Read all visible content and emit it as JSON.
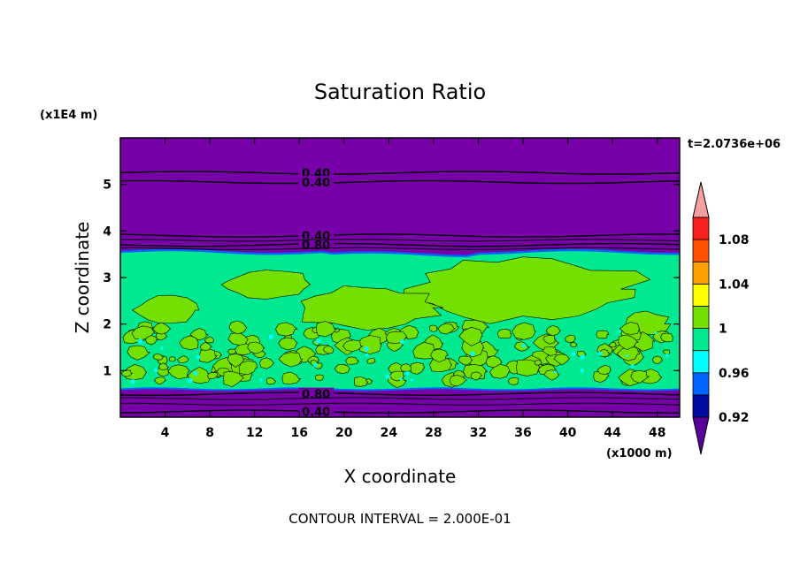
{
  "chart_data": {
    "type": "heatmap",
    "title": "Saturation Ratio",
    "xlabel": "X coordinate",
    "ylabel": "Z coordinate",
    "x_scale_label": "(x1000 m)",
    "y_scale_label": "(x1E4 m)",
    "time_label": "t=2.0736e+06",
    "footer": "CONTOUR INTERVAL = 2.000E-01",
    "xlim": [
      0,
      50
    ],
    "ylim": [
      0,
      6
    ],
    "x_ticks": [
      4,
      8,
      12,
      16,
      20,
      24,
      28,
      32,
      36,
      40,
      44,
      48
    ],
    "y_ticks": [
      1,
      2,
      3,
      4,
      5
    ],
    "colorbar": {
      "levels": [
        0.92,
        0.94,
        0.96,
        0.98,
        1.0,
        1.02,
        1.04,
        1.06,
        1.08,
        1.1
      ],
      "colors": [
        "#5a009a",
        "#000aa0",
        "#0064ff",
        "#00ffff",
        "#00e890",
        "#73e000",
        "#ffff00",
        "#ffa000",
        "#ff5000",
        "#f52020",
        "#f5a0a0"
      ],
      "tick_labels": [
        "0.92",
        "0.96",
        "1",
        "1.04",
        "1.08"
      ],
      "tick_values": [
        0.92,
        0.96,
        1.0,
        1.04,
        1.08
      ]
    },
    "regions": {
      "dry_layer_top": {
        "z_range": [
          3.55,
          6.0
        ],
        "value": 0.4,
        "color": "#7800a8"
      },
      "cloud_layer": {
        "z_range": [
          0.6,
          3.55
        ],
        "values": [
          0.98,
          1.0
        ],
        "colors": [
          "#00e890",
          "#73e000"
        ]
      },
      "dry_layer_bottom": {
        "z_range": [
          0.0,
          0.6
        ],
        "value": 0.4,
        "color": "#7800a8"
      }
    },
    "contours": [
      {
        "z": 5.25,
        "label": "0.40"
      },
      {
        "z": 5.05,
        "label": "0.40"
      },
      {
        "z": 3.9,
        "label": "0.40"
      },
      {
        "z": 3.7,
        "label": "0.80"
      },
      {
        "z": 0.5,
        "label": "0.80"
      },
      {
        "z": 0.12,
        "label": "0.40"
      }
    ]
  }
}
